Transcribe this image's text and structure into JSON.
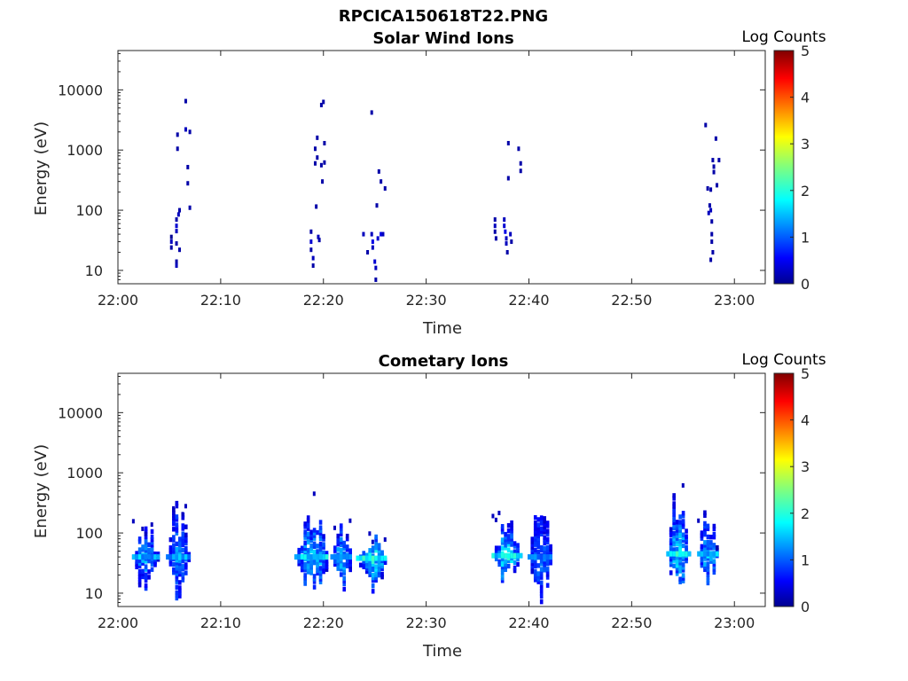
{
  "figure_title": "RPCICA150618T22.PNG",
  "colorbar": {
    "label": "Log Counts",
    "ticks": [
      "0",
      "1",
      "2",
      "3",
      "4",
      "5"
    ],
    "range": [
      0,
      5
    ],
    "colormap": "jet"
  },
  "chart_data": [
    {
      "type": "heatmap",
      "title": "Solar Wind Ions",
      "xlabel": "Time",
      "ylabel": "Energy (eV)",
      "x_ticks": [
        "22:00",
        "22:10",
        "22:20",
        "22:30",
        "22:40",
        "22:50",
        "23:00"
      ],
      "y_ticks": [
        "10",
        "100",
        "1000",
        "10000"
      ],
      "x_range_min": [
        0,
        63
      ],
      "y_scale": "log",
      "ylim": [
        6,
        45000
      ],
      "clim": [
        0,
        5
      ],
      "cells": [
        [
          5.2,
          36,
          0.1
        ],
        [
          5.2,
          30,
          0.3
        ],
        [
          5.2,
          24,
          0.2
        ],
        [
          5.7,
          70,
          0.2
        ],
        [
          5.7,
          55,
          0.4
        ],
        [
          5.7,
          45,
          0.3
        ],
        [
          5.7,
          28,
          0.2
        ],
        [
          5.7,
          14,
          0.2
        ],
        [
          5.7,
          12,
          0.3
        ],
        [
          5.8,
          1800,
          0.2
        ],
        [
          5.8,
          1050,
          0.2
        ],
        [
          5.9,
          85,
          0.3
        ],
        [
          6.0,
          100,
          0.2
        ],
        [
          6.0,
          22,
          0.2
        ],
        [
          6.6,
          2200,
          0.3
        ],
        [
          6.6,
          6500,
          0.2
        ],
        [
          6.8,
          520,
          0.2
        ],
        [
          6.8,
          280,
          0.2
        ],
        [
          7.0,
          2000,
          0.2
        ],
        [
          7.0,
          110,
          0.2
        ],
        [
          18.8,
          44,
          0.2
        ],
        [
          18.8,
          30,
          0.4
        ],
        [
          18.8,
          22,
          0.2
        ],
        [
          19.0,
          16,
          0.3
        ],
        [
          19.0,
          12,
          0.2
        ],
        [
          19.2,
          1050,
          0.2
        ],
        [
          19.2,
          600,
          0.2
        ],
        [
          19.3,
          115,
          0.2
        ],
        [
          19.4,
          1600,
          0.2
        ],
        [
          19.4,
          750,
          0.2
        ],
        [
          19.5,
          36,
          0.3
        ],
        [
          19.6,
          32,
          0.2
        ],
        [
          19.8,
          5600,
          0.2
        ],
        [
          19.8,
          560,
          0.2
        ],
        [
          19.9,
          300,
          0.2
        ],
        [
          20.0,
          6300,
          0.2
        ],
        [
          20.1,
          1300,
          0.2
        ],
        [
          20.1,
          620,
          0.2
        ],
        [
          23.9,
          40,
          0.3
        ],
        [
          24.3,
          20,
          0.2
        ],
        [
          24.7,
          4200,
          0.2
        ],
        [
          24.7,
          40,
          0.3
        ],
        [
          24.8,
          30,
          0.5
        ],
        [
          24.8,
          24,
          0.3
        ],
        [
          25.0,
          14,
          0.4
        ],
        [
          25.1,
          11,
          0.3
        ],
        [
          25.1,
          7,
          0.2
        ],
        [
          25.2,
          120,
          0.2
        ],
        [
          25.3,
          34,
          0.4
        ],
        [
          25.4,
          440,
          0.2
        ],
        [
          25.6,
          40,
          0.5
        ],
        [
          25.6,
          300,
          0.2
        ],
        [
          25.8,
          40,
          0.3
        ],
        [
          26.0,
          230,
          0.2
        ],
        [
          36.7,
          70,
          0.2
        ],
        [
          36.7,
          55,
          0.3
        ],
        [
          36.7,
          44,
          0.2
        ],
        [
          36.8,
          34,
          0.2
        ],
        [
          37.6,
          70,
          0.3
        ],
        [
          37.6,
          55,
          0.4
        ],
        [
          37.7,
          44,
          0.5
        ],
        [
          37.8,
          34,
          0.3
        ],
        [
          37.8,
          28,
          0.3
        ],
        [
          37.9,
          20,
          0.2
        ],
        [
          38.0,
          1300,
          0.2
        ],
        [
          38.0,
          340,
          0.2
        ],
        [
          38.2,
          40,
          0.3
        ],
        [
          38.3,
          30,
          0.2
        ],
        [
          39.0,
          1050,
          0.2
        ],
        [
          39.2,
          600,
          0.2
        ],
        [
          39.2,
          450,
          0.2
        ],
        [
          57.2,
          2600,
          0.2
        ],
        [
          57.4,
          230,
          0.2
        ],
        [
          57.5,
          90,
          0.3
        ],
        [
          57.6,
          120,
          0.2
        ],
        [
          57.7,
          100,
          0.3
        ],
        [
          57.8,
          65,
          0.2
        ],
        [
          57.8,
          40,
          0.2
        ],
        [
          57.8,
          30,
          0.2
        ],
        [
          57.7,
          15,
          0.2
        ],
        [
          57.9,
          20,
          0.2
        ],
        [
          57.9,
          680,
          0.2
        ],
        [
          58.0,
          430,
          0.2
        ],
        [
          58.0,
          530,
          0.2
        ],
        [
          58.2,
          1550,
          0.2
        ],
        [
          58.3,
          260,
          0.2
        ],
        [
          58.5,
          680,
          0.2
        ],
        [
          57.7,
          220,
          0.2
        ]
      ]
    },
    {
      "type": "heatmap",
      "title": "Cometary Ions",
      "xlabel": "Time",
      "ylabel": "Energy (eV)",
      "x_ticks": [
        "22:00",
        "22:10",
        "22:20",
        "22:30",
        "22:40",
        "22:50",
        "23:00"
      ],
      "y_ticks": [
        "10",
        "100",
        "1000",
        "10000"
      ],
      "x_range_min": [
        0,
        63
      ],
      "y_scale": "log",
      "ylim": [
        6,
        45000
      ],
      "clim": [
        0,
        5
      ],
      "bursts": [
        {
          "t0": 1.5,
          "t1": 4.0,
          "center": 40,
          "emax": 160,
          "emin": 6.5,
          "level": 1.4,
          "seed": 3
        },
        {
          "t0": 4.8,
          "t1": 7.0,
          "center": 40,
          "emax": 550,
          "emin": 6.5,
          "level": 1.3,
          "seed": 7
        },
        {
          "t0": 17.3,
          "t1": 20.6,
          "center": 40,
          "emax": 480,
          "emin": 7.0,
          "level": 1.6,
          "seed": 11
        },
        {
          "t0": 20.8,
          "t1": 22.8,
          "center": 40,
          "emax": 230,
          "emin": 6.5,
          "level": 1.5,
          "seed": 13
        },
        {
          "t0": 23.3,
          "t1": 26.2,
          "center": 38,
          "emax": 100,
          "emin": 9.0,
          "level": 1.9,
          "seed": 17
        },
        {
          "t0": 36.5,
          "t1": 39.2,
          "center": 42,
          "emax": 300,
          "emin": 10.0,
          "level": 1.7,
          "seed": 19
        },
        {
          "t0": 40.0,
          "t1": 42.3,
          "center": 40,
          "emax": 820,
          "emin": 6.5,
          "level": 1.2,
          "seed": 23
        },
        {
          "t0": 53.5,
          "t1": 55.6,
          "center": 45,
          "emax": 900,
          "emin": 7.0,
          "level": 1.7,
          "seed": 29
        },
        {
          "t0": 56.5,
          "t1": 58.4,
          "center": 45,
          "emax": 360,
          "emin": 12.0,
          "level": 1.5,
          "seed": 31
        }
      ]
    }
  ]
}
